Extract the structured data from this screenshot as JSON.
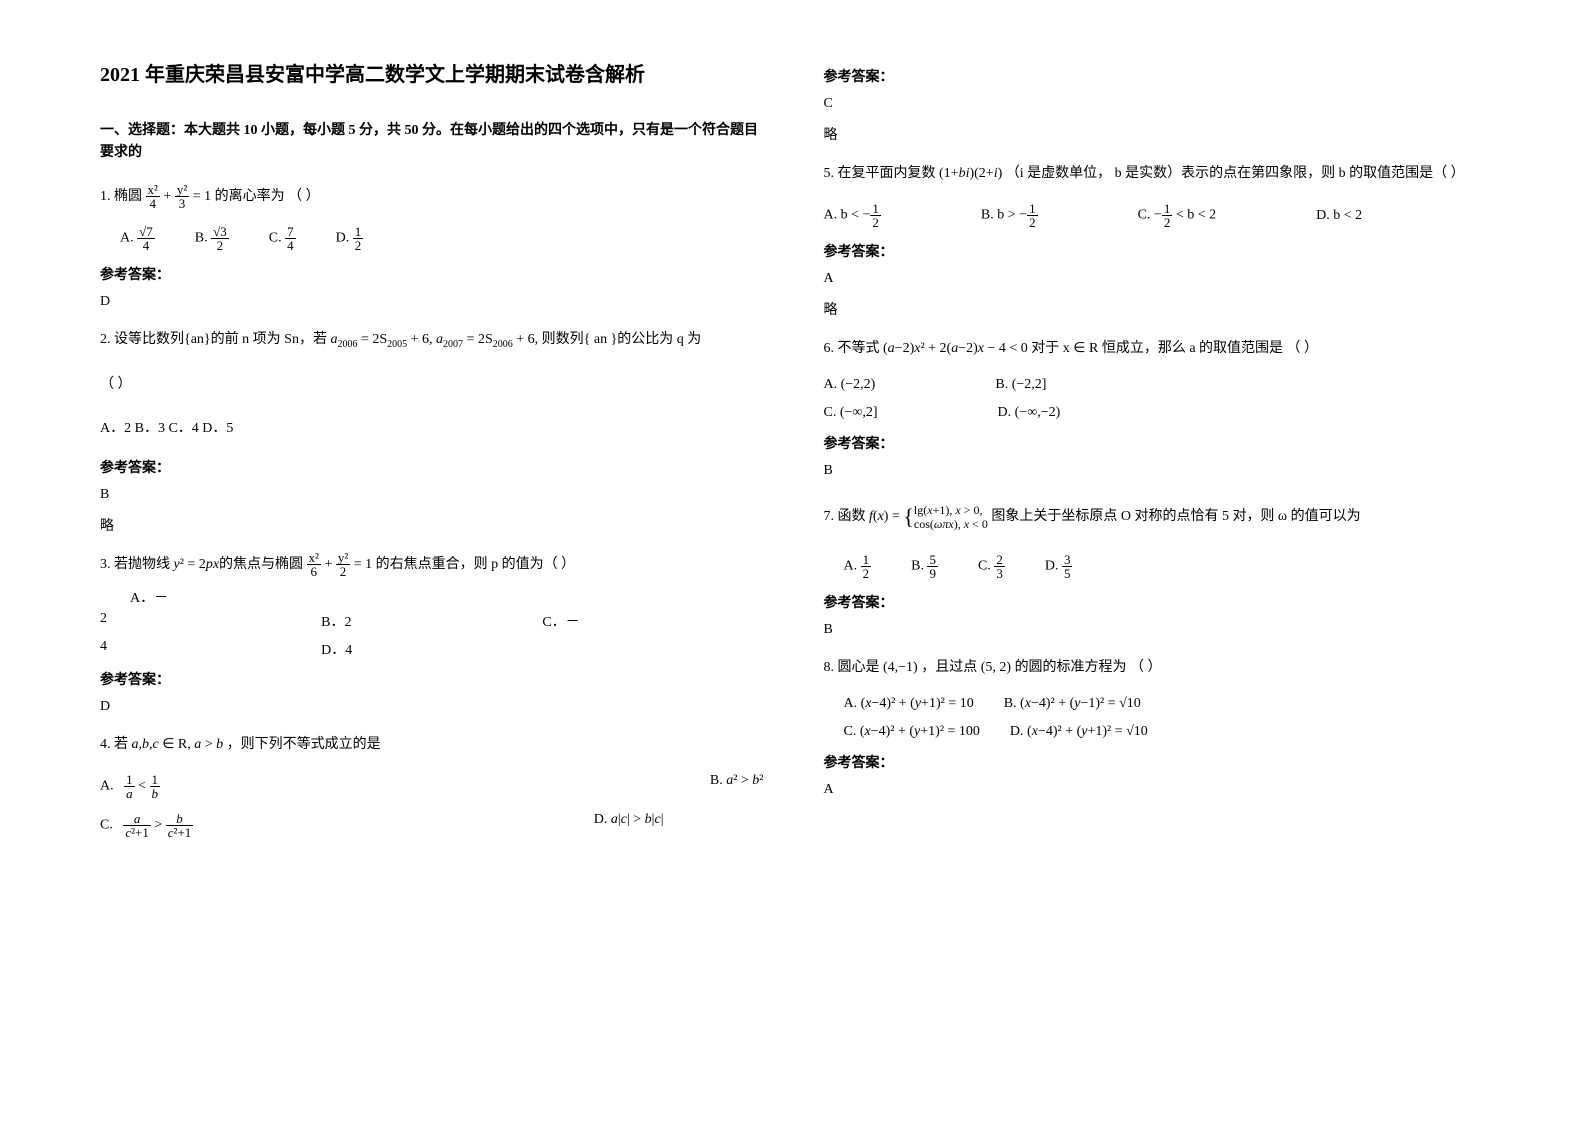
{
  "title": "2021 年重庆荣昌县安富中学高二数学文上学期期末试卷含解析",
  "section1_header": "一、选择题：本大题共 10 小题，每小题 5 分，共 50 分。在每小题给出的四个选项中，只有是一个符合题目要求的",
  "q1": {
    "stem_prefix": "1. 椭圆",
    "formula": "x²/4 + y²/3 = 1",
    "stem_suffix": "的离心率为    （    ）",
    "optA_prefix": "A.",
    "optA_num": "√7",
    "optA_den": "4",
    "optB_prefix": "B.",
    "optB_num": "√3",
    "optB_den": "2",
    "optC_prefix": "C.",
    "optC_num": "7",
    "optC_den": "4",
    "optD_prefix": "D.",
    "optD_num": "1",
    "optD_den": "2",
    "answer_label": "参考答案：",
    "answer": "D"
  },
  "q2": {
    "stem_prefix": "2. 设等比数列{an}的前 n 项为 Sn，若",
    "formula": "a₂₀₀₆ = 2S₂₀₀₅ + 6, a₂₀₀₇ = 2S₂₀₀₆ + 6,",
    "stem_suffix": "则数列{ an }的公比为 q 为",
    "blank": "（        ）",
    "options": "A．2   B．3   C．4   D．5",
    "answer_label": "参考答案：",
    "answer": "B",
    "note": "略"
  },
  "q3": {
    "stem_prefix": "3. 若抛物线",
    "formula1": "y² = 2px的焦点与椭圆",
    "formula2": "x²/6 + y²/2 = 1",
    "stem_suffix": "的右焦点重合，则 p 的值为（  ）",
    "optA": "A．－",
    "row1_a": "2",
    "row1_b": "B．2",
    "row1_c": "C．－",
    "row2_a": "4",
    "row2_b": "D．4",
    "answer_label": "参考答案：",
    "answer": "D"
  },
  "q4": {
    "stem_prefix": "4. 若",
    "formula": "a,b,c ∈ R, a > b",
    "stem_suffix": "，则下列不等式成立的是",
    "optA_prefix": "A.",
    "optA": "1/a < 1/b",
    "optB_prefix": "B.",
    "optB": "a² > b²",
    "optC_prefix": "C.",
    "optC": "a/(c²+1) > b/(c²+1)",
    "optD_prefix": "D.",
    "optD": "a|c| > b|c|",
    "answer_label": "参考答案：",
    "answer": "C",
    "note": "略"
  },
  "q5": {
    "stem_prefix": "5. 在复平面内复数",
    "formula": "(1+bi)(2+i)",
    "stem_mid": "（i 是虚数单位， b 是实数）表示的点在第四象限，则 b 的取值范围是（    ）",
    "optA_prefix": "A. b <",
    "optA_num": "1",
    "optA_den": "2",
    "optA_neg": "−",
    "optB_prefix": "B. b >",
    "optB_neg": "−",
    "optB_num": "1",
    "optB_den": "2",
    "optC_prefix": "C.",
    "optC_neg": "−",
    "optC_num": "1",
    "optC_den": "2",
    "optC_suffix": "< b < 2",
    "optD_prefix": "D. b < 2",
    "answer_label": "参考答案：",
    "answer": "A",
    "note": "略"
  },
  "q6": {
    "stem_prefix": "6. 不等式",
    "formula": "(a−2)x² + 2(a−2)x − 4 < 0",
    "stem_mid": " 对于 x ∈ R 恒成立，那么 a 的取值范围是    （     ）",
    "optA_prefix": "A.",
    "optA": "(−2,2)",
    "optB_prefix": "B.",
    "optB": "(−2,2]",
    "optC_prefix": "C.",
    "optC": "(−∞,2]",
    "optD_prefix": "D.",
    "optD": "(−∞,−2)",
    "answer_label": "参考答案：",
    "answer": "B"
  },
  "q7": {
    "stem_prefix": "7. 函数",
    "formula": "f(x) = { lg(x+1), x > 0,  cos(ωπx), x < 0",
    "stem_suffix": "图象上关于坐标原点 O 对称的点恰有 5 对，则 ω 的值可以为",
    "optA_prefix": "A.",
    "optA_num": "1",
    "optA_den": "2",
    "optB_prefix": "B.",
    "optB_num": "5",
    "optB_den": "9",
    "optC_prefix": "C.",
    "optC_num": "2",
    "optC_den": "3",
    "optD_prefix": "D.",
    "optD_num": "3",
    "optD_den": "5",
    "answer_label": "参考答案：",
    "answer": "B"
  },
  "q8": {
    "stem_prefix": "8. 圆心是",
    "point1": "(4,−1)",
    "stem_mid": "，且过点",
    "point2": "(5, 2)",
    "stem_suffix": "的圆的标准方程为    （         ）",
    "optA_prefix": "A.",
    "optA": "(x−4)² + (y+1)² = 10",
    "optB_prefix": "B.",
    "optB": "(x−4)² + (y−1)² = √10",
    "optC_prefix": "C.",
    "optC": "(x−4)² + (y+1)² = 100",
    "optD_prefix": "D.",
    "optD": "(x−4)² + (y+1)² = √10",
    "answer_label": "参考答案：",
    "answer": "A"
  }
}
